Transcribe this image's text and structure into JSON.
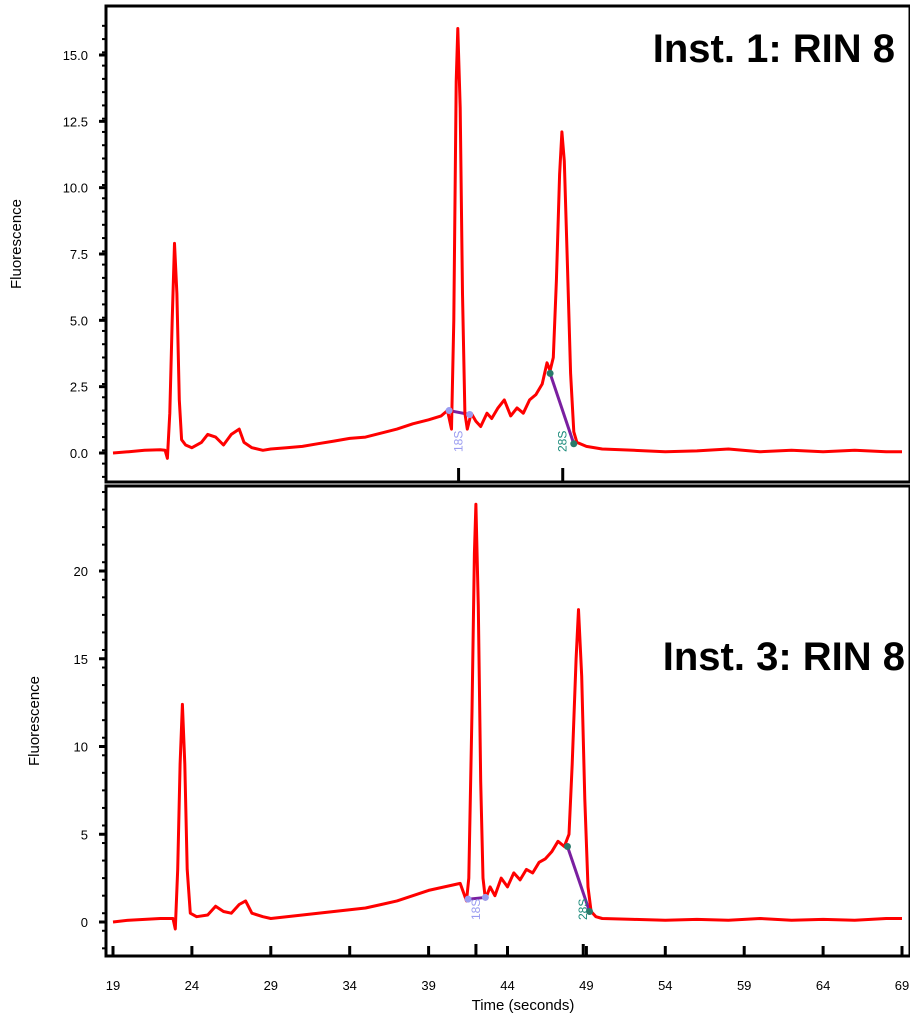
{
  "chart_data": [
    {
      "type": "line",
      "title": "Inst. 1: RIN 8",
      "xlabel": "",
      "ylabel": "Fluorescence",
      "xlim": [
        19,
        69
      ],
      "ylim": [
        -0.9,
        16.5
      ],
      "yticks": [
        "0.0",
        "2.5",
        "5.0",
        "7.5",
        "10.0",
        "12.5",
        "15.0"
      ],
      "ytick_values": [
        0,
        2.5,
        5,
        7.5,
        10,
        12.5,
        15
      ],
      "peaks": [
        {
          "label": "18S",
          "time": 40.9,
          "color": "#9a9cf0"
        },
        {
          "label": "28S",
          "time": 47.5,
          "color": "#1a8a7a"
        }
      ],
      "baseline_segments": [
        {
          "points": [
            [
              40.3,
              1.6
            ],
            [
              41.6,
              1.45
            ]
          ]
        },
        {
          "points": [
            [
              46.7,
              3.0
            ],
            [
              48.2,
              0.35
            ]
          ]
        }
      ],
      "series": [
        {
          "color": "#ff0000",
          "points": [
            [
              19,
              0.0
            ],
            [
              20,
              0.05
            ],
            [
              21,
              0.1
            ],
            [
              22,
              0.12
            ],
            [
              22.3,
              0.1
            ],
            [
              22.45,
              -0.2
            ],
            [
              22.6,
              1.5
            ],
            [
              22.75,
              5.0
            ],
            [
              22.9,
              7.9
            ],
            [
              23.05,
              6.0
            ],
            [
              23.2,
              2.0
            ],
            [
              23.35,
              0.5
            ],
            [
              23.6,
              0.3
            ],
            [
              24,
              0.2
            ],
            [
              24.6,
              0.4
            ],
            [
              25,
              0.7
            ],
            [
              25.5,
              0.6
            ],
            [
              26,
              0.3
            ],
            [
              26.5,
              0.7
            ],
            [
              27,
              0.9
            ],
            [
              27.3,
              0.4
            ],
            [
              27.8,
              0.2
            ],
            [
              28.5,
              0.1
            ],
            [
              29,
              0.15
            ],
            [
              30,
              0.2
            ],
            [
              31,
              0.25
            ],
            [
              32,
              0.35
            ],
            [
              33,
              0.45
            ],
            [
              34,
              0.55
            ],
            [
              35,
              0.6
            ],
            [
              36,
              0.75
            ],
            [
              37,
              0.9
            ],
            [
              38,
              1.1
            ],
            [
              39,
              1.25
            ],
            [
              39.8,
              1.4
            ],
            [
              40.2,
              1.6
            ],
            [
              40.45,
              0.9
            ],
            [
              40.6,
              5.0
            ],
            [
              40.75,
              14.0
            ],
            [
              40.85,
              16.0
            ],
            [
              41.0,
              13.0
            ],
            [
              41.15,
              6.0
            ],
            [
              41.3,
              1.5
            ],
            [
              41.45,
              0.9
            ],
            [
              41.7,
              1.5
            ],
            [
              42,
              1.2
            ],
            [
              42.3,
              1.0
            ],
            [
              42.7,
              1.5
            ],
            [
              43,
              1.3
            ],
            [
              43.4,
              1.7
            ],
            [
              43.8,
              2.0
            ],
            [
              44.2,
              1.4
            ],
            [
              44.6,
              1.7
            ],
            [
              45,
              1.5
            ],
            [
              45.4,
              2.0
            ],
            [
              45.8,
              2.2
            ],
            [
              46.2,
              2.6
            ],
            [
              46.5,
              3.4
            ],
            [
              46.7,
              3.1
            ],
            [
              46.9,
              3.6
            ],
            [
              47.1,
              6.5
            ],
            [
              47.3,
              10.5
            ],
            [
              47.45,
              12.1
            ],
            [
              47.6,
              11.0
            ],
            [
              47.8,
              7.0
            ],
            [
              48.0,
              3.0
            ],
            [
              48.2,
              0.8
            ],
            [
              48.4,
              0.4
            ],
            [
              49,
              0.25
            ],
            [
              50,
              0.15
            ],
            [
              52,
              0.1
            ],
            [
              54,
              0.05
            ],
            [
              56,
              0.08
            ],
            [
              58,
              0.15
            ],
            [
              60,
              0.05
            ],
            [
              62,
              0.1
            ],
            [
              64,
              0.05
            ],
            [
              66,
              0.1
            ],
            [
              68,
              0.05
            ],
            [
              69,
              0.05
            ]
          ]
        }
      ]
    },
    {
      "type": "line",
      "title": "Inst. 3: RIN 8",
      "xlabel": "Time (seconds)",
      "ylabel": "Fluorescence",
      "xlim": [
        19,
        69
      ],
      "ylim": [
        -1.5,
        24.5
      ],
      "xticks": [
        "19",
        "24",
        "29",
        "34",
        "39",
        "44",
        "49",
        "54",
        "59",
        "64",
        "69"
      ],
      "xtick_values": [
        19,
        24,
        29,
        34,
        39,
        44,
        49,
        54,
        59,
        64,
        69
      ],
      "yticks": [
        "0",
        "5",
        "10",
        "15",
        "20"
      ],
      "ytick_values": [
        0,
        5,
        10,
        15,
        20
      ],
      "peaks": [
        {
          "label": "18S",
          "time": 42.0,
          "color": "#9a9cf0"
        },
        {
          "label": "28S",
          "time": 48.8,
          "color": "#1a8a7a"
        }
      ],
      "baseline_segments": [
        {
          "points": [
            [
              41.5,
              1.3
            ],
            [
              42.6,
              1.4
            ]
          ]
        },
        {
          "points": [
            [
              47.8,
              4.3
            ],
            [
              49.2,
              0.6
            ]
          ]
        }
      ],
      "series": [
        {
          "color": "#ff0000",
          "points": [
            [
              19,
              0.0
            ],
            [
              20,
              0.1
            ],
            [
              21,
              0.15
            ],
            [
              22,
              0.2
            ],
            [
              22.8,
              0.2
            ],
            [
              22.95,
              -0.4
            ],
            [
              23.1,
              3.0
            ],
            [
              23.25,
              9.0
            ],
            [
              23.4,
              12.4
            ],
            [
              23.55,
              9.0
            ],
            [
              23.7,
              3.0
            ],
            [
              23.9,
              0.5
            ],
            [
              24.3,
              0.3
            ],
            [
              25,
              0.4
            ],
            [
              25.5,
              0.9
            ],
            [
              26,
              0.6
            ],
            [
              26.5,
              0.5
            ],
            [
              27,
              1.0
            ],
            [
              27.4,
              1.2
            ],
            [
              27.8,
              0.5
            ],
            [
              28.5,
              0.3
            ],
            [
              29,
              0.2
            ],
            [
              30,
              0.3
            ],
            [
              31,
              0.4
            ],
            [
              32,
              0.5
            ],
            [
              33,
              0.6
            ],
            [
              34,
              0.7
            ],
            [
              35,
              0.8
            ],
            [
              36,
              1.0
            ],
            [
              37,
              1.2
            ],
            [
              38,
              1.5
            ],
            [
              39,
              1.8
            ],
            [
              40,
              2.0
            ],
            [
              41,
              2.2
            ],
            [
              41.4,
              1.2
            ],
            [
              41.55,
              2.5
            ],
            [
              41.75,
              12.0
            ],
            [
              41.9,
              21.0
            ],
            [
              42.0,
              23.8
            ],
            [
              42.15,
              18.0
            ],
            [
              42.3,
              8.0
            ],
            [
              42.45,
              2.5
            ],
            [
              42.6,
              1.3
            ],
            [
              42.9,
              2.0
            ],
            [
              43.2,
              1.5
            ],
            [
              43.6,
              2.5
            ],
            [
              44,
              2.0
            ],
            [
              44.4,
              2.8
            ],
            [
              44.8,
              2.4
            ],
            [
              45.2,
              3.0
            ],
            [
              45.6,
              2.8
            ],
            [
              46,
              3.4
            ],
            [
              46.4,
              3.6
            ],
            [
              46.8,
              4.0
            ],
            [
              47.2,
              4.6
            ],
            [
              47.6,
              4.3
            ],
            [
              47.9,
              5.0
            ],
            [
              48.1,
              9.0
            ],
            [
              48.35,
              15.0
            ],
            [
              48.5,
              17.8
            ],
            [
              48.7,
              14.0
            ],
            [
              48.9,
              7.0
            ],
            [
              49.1,
              2.0
            ],
            [
              49.3,
              0.6
            ],
            [
              49.6,
              0.3
            ],
            [
              50,
              0.2
            ],
            [
              52,
              0.15
            ],
            [
              54,
              0.1
            ],
            [
              56,
              0.15
            ],
            [
              58,
              0.1
            ],
            [
              60,
              0.2
            ],
            [
              62,
              0.1
            ],
            [
              64,
              0.15
            ],
            [
              66,
              0.1
            ],
            [
              68,
              0.2
            ],
            [
              69,
              0.2
            ]
          ]
        }
      ]
    }
  ]
}
